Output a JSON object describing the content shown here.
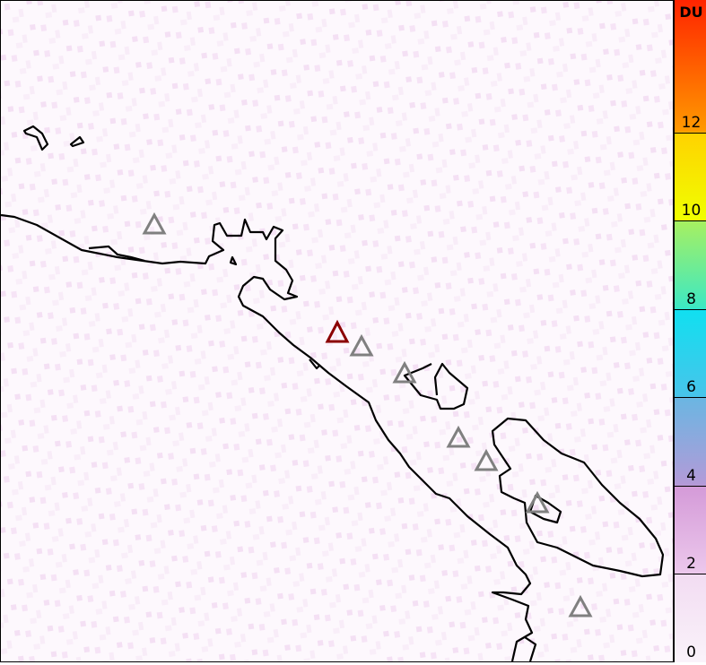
{
  "colorbar": {
    "unit": "DU",
    "min": 0,
    "max": 15,
    "ticks": [
      "0",
      "2",
      "4",
      "6",
      "8",
      "10",
      "12"
    ],
    "stops": [
      {
        "v": 0,
        "c": "#faf3fa"
      },
      {
        "v": 2,
        "c": "#f2dcf2"
      },
      {
        "v": 2.01,
        "c": "#ecc8ec"
      },
      {
        "v": 4,
        "c": "#d49ad8"
      },
      {
        "v": 4.01,
        "c": "#b49ad8"
      },
      {
        "v": 6,
        "c": "#6ab6e2"
      },
      {
        "v": 6.01,
        "c": "#48c4ea"
      },
      {
        "v": 8,
        "c": "#10e0f0"
      },
      {
        "v": 8.01,
        "c": "#3ce8c4"
      },
      {
        "v": 10,
        "c": "#a8f060"
      },
      {
        "v": 10.01,
        "c": "#f0ff00"
      },
      {
        "v": 12,
        "c": "#ffd200"
      },
      {
        "v": 12.01,
        "c": "#ff9a00"
      },
      {
        "v": 15,
        "c": "#ff2400"
      }
    ]
  },
  "markers": {
    "active_color": "#8b0000",
    "inactive_color": "#808080"
  },
  "background_color": "#fdf8fd",
  "coastline_color": "#000000"
}
